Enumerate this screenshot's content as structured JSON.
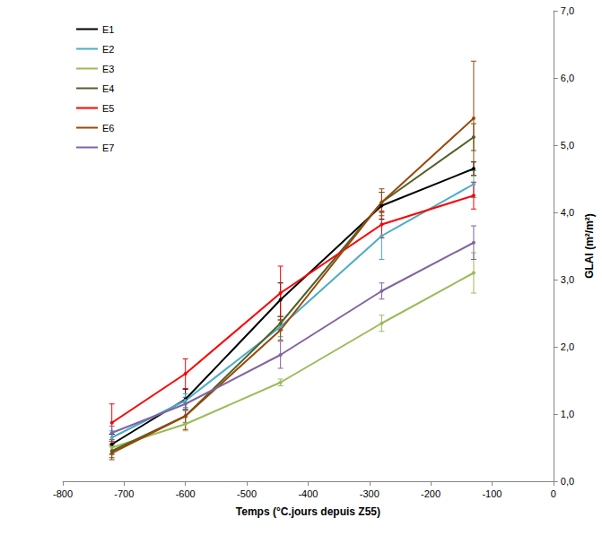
{
  "chart_data": {
    "type": "line",
    "x_label": "Temps (°C.jours depuis Z55)",
    "y_label": "GLAI (m²/m²)",
    "x": [
      -720,
      -600,
      -445,
      -280,
      -130
    ],
    "xlim": [
      -800,
      0
    ],
    "xticks": [
      -800,
      -700,
      -600,
      -500,
      -400,
      -300,
      -200,
      -100,
      0
    ],
    "ylim": [
      0,
      7
    ],
    "yticks": [
      {
        "value": 0,
        "label": "0,0"
      },
      {
        "value": 1,
        "label": "1,0"
      },
      {
        "value": 2,
        "label": "2,0"
      },
      {
        "value": 3,
        "label": "3,0"
      },
      {
        "value": 4,
        "label": "4,0"
      },
      {
        "value": 5,
        "label": "5,0"
      },
      {
        "value": 6,
        "label": "6,0"
      },
      {
        "value": 7,
        "label": "7,0"
      }
    ],
    "grid": false,
    "legend": "upper left",
    "marker": "circle",
    "series": [
      {
        "name": "E1",
        "color": "#000000",
        "values": [
          0.55,
          1.22,
          2.7,
          4.1,
          4.65
        ],
        "errors": [
          0.15,
          0.15,
          0.25,
          0.2,
          0.1
        ]
      },
      {
        "name": "E2",
        "color": "#4bacc6",
        "values": [
          0.65,
          1.2,
          2.3,
          3.65,
          4.42
        ],
        "errors": [
          0.1,
          0.1,
          0.15,
          0.35,
          0.2
        ]
      },
      {
        "name": "E3",
        "color": "#9bbb59",
        "values": [
          0.5,
          0.85,
          1.47,
          2.35,
          3.1
        ],
        "errors": [
          0.1,
          0.1,
          0.05,
          0.12,
          0.3
        ]
      },
      {
        "name": "E4",
        "color": "#4f6228",
        "values": [
          0.45,
          0.97,
          2.35,
          4.15,
          5.12
        ],
        "errors": [
          0.1,
          0.1,
          0.1,
          0.15,
          0.2
        ]
      },
      {
        "name": "E5",
        "color": "#ff0000",
        "values": [
          0.87,
          1.6,
          2.8,
          3.82,
          4.25
        ],
        "errors": [
          0.28,
          0.22,
          0.4,
          0.2,
          0.2
        ]
      },
      {
        "name": "E6",
        "color": "#984807",
        "values": [
          0.42,
          0.97,
          2.25,
          4.15,
          5.4
        ],
        "errors": [
          0.1,
          0.2,
          0.15,
          0.2,
          0.85
        ]
      },
      {
        "name": "E7",
        "color": "#8064a2",
        "values": [
          0.72,
          1.15,
          1.88,
          2.83,
          3.55
        ],
        "errors": [
          0.1,
          0.1,
          0.2,
          0.12,
          0.25
        ]
      }
    ]
  }
}
